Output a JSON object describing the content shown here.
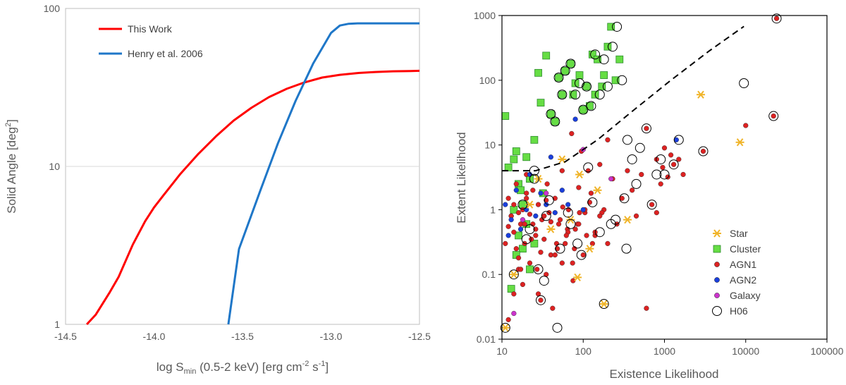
{
  "chart_data": [
    {
      "type": "line",
      "id": "left",
      "xlabel_main": "log S",
      "xlabel_sub": "min",
      "xlabel_rest": " (0.5-2 keV) [erg cm",
      "xlabel_sup1": "-2",
      "xlabel_mid": " s",
      "xlabel_sup2": "-1",
      "xlabel_end": "]",
      "ylabel_main": "Solid Angle [deg",
      "ylabel_sup": "2",
      "ylabel_end": "]",
      "xlim": [
        -14.5,
        -12.5
      ],
      "ylim": [
        1,
        100
      ],
      "yscale": "log",
      "xticks": [
        -14.5,
        -14.0,
        -13.5,
        -13.0,
        -12.5
      ],
      "xtick_labels": [
        "-14.5",
        "-14.0",
        "-13.5",
        "-13.0",
        "-12.5"
      ],
      "yticks": [
        1,
        10,
        100
      ],
      "ytick_labels": [
        "1",
        "10",
        "100"
      ],
      "legend_position": "top-left",
      "series": [
        {
          "name": "This Work",
          "color": "#ff0000",
          "x": [
            -14.38,
            -14.33,
            -14.25,
            -14.2,
            -14.12,
            -14.05,
            -14.0,
            -13.95,
            -13.85,
            -13.75,
            -13.65,
            -13.55,
            -13.45,
            -13.35,
            -13.25,
            -13.15,
            -13.05,
            -12.95,
            -12.85,
            -12.75,
            -12.65,
            -12.55,
            -12.5
          ],
          "y": [
            1.0,
            1.15,
            1.6,
            2.0,
            3.2,
            4.5,
            5.5,
            6.5,
            9.0,
            12.0,
            15.5,
            19.5,
            23.5,
            27.5,
            31.0,
            34.0,
            36.5,
            38.0,
            39.0,
            39.6,
            40.0,
            40.2,
            40.3
          ]
        },
        {
          "name": "Henry et al. 2006",
          "color": "#1f77c8",
          "x": [
            -13.58,
            -13.52,
            -13.4,
            -13.3,
            -13.2,
            -13.1,
            -13.0,
            -12.95,
            -12.9,
            -12.85,
            -12.8,
            -12.7,
            -12.6,
            -12.5
          ],
          "y": [
            1.0,
            3.0,
            7.0,
            14.0,
            26.0,
            45.0,
            70.0,
            78.0,
            80.0,
            80.5,
            80.5,
            80.5,
            80.5,
            80.5
          ]
        }
      ]
    },
    {
      "type": "scatter",
      "id": "right",
      "xlabel": "Existence Likelihood",
      "ylabel": "Extent Likelihood",
      "xscale": "log",
      "yscale": "log",
      "xlim": [
        10,
        100000
      ],
      "ylim": [
        0.01,
        1000
      ],
      "xticks": [
        10,
        100,
        1000,
        10000,
        100000
      ],
      "xtick_labels": [
        "10",
        "100",
        "1000",
        "10000",
        "100000"
      ],
      "yticks": [
        0.01,
        0.1,
        1,
        10,
        100,
        1000
      ],
      "ytick_labels": [
        "0.01",
        "0.1",
        "1",
        "10",
        "100",
        "1000"
      ],
      "legend_position": "bottom-right",
      "dashed_line": {
        "x": [
          10,
          26,
          60,
          150,
          400,
          1200,
          3500,
          9500
        ],
        "y": [
          4.0,
          4.0,
          5.5,
          12,
          33,
          100,
          280,
          680
        ]
      },
      "series": [
        {
          "name": "Star",
          "marker": "asterisk",
          "color": "#f0b429",
          "x": [
            11,
            14,
            22,
            28,
            40,
            55,
            70,
            85,
            90,
            120,
            150,
            180,
            350,
            2800,
            8500
          ],
          "y": [
            0.015,
            0.1,
            1.2,
            3.0,
            0.5,
            6.0,
            0.7,
            0.09,
            3.5,
            0.25,
            2.0,
            0.035,
            0.7,
            60,
            11
          ]
        },
        {
          "name": "Cluster",
          "marker": "square",
          "color": "#66dd44",
          "x": [
            11,
            12,
            14,
            15,
            16,
            18,
            20,
            22,
            25,
            28,
            30,
            32,
            35,
            40,
            45,
            50,
            55,
            60,
            70,
            75,
            80,
            90,
            100,
            110,
            120,
            130,
            140,
            150,
            170,
            180,
            200,
            220,
            250,
            280,
            14,
            16,
            18,
            20,
            22,
            25,
            13,
            15,
            17
          ],
          "y": [
            28,
            4.5,
            6.0,
            8.0,
            2.5,
            1.2,
            6.5,
            3.0,
            12,
            130,
            45,
            1.8,
            240,
            30,
            23,
            110,
            60,
            140,
            180,
            60,
            90,
            120,
            35,
            80,
            40,
            250,
            60,
            210,
            80,
            120,
            330,
            670,
            100,
            210,
            1.0,
            0.4,
            0.25,
            0.6,
            0.12,
            0.3,
            0.06,
            0.2,
            2.0
          ]
        },
        {
          "name": "AGN1",
          "marker": "dot",
          "color": "#dd2222",
          "x": [
            11,
            12,
            13,
            14,
            15,
            16,
            17,
            18,
            19,
            20,
            22,
            24,
            26,
            28,
            30,
            33,
            36,
            40,
            45,
            50,
            55,
            60,
            66,
            72,
            80,
            88,
            95,
            105,
            115,
            125,
            140,
            160,
            180,
            200,
            230,
            260,
            300,
            350,
            400,
            450,
            520,
            600,
            700,
            800,
            900,
            1000,
            1100,
            1300,
            1500,
            1700,
            3000,
            10000,
            22000,
            24000,
            12,
            14,
            16,
            18,
            20,
            23,
            27,
            31,
            35,
            42,
            48,
            56,
            64,
            75,
            85,
            100,
            120,
            140,
            170,
            200,
            12,
            14,
            16,
            19,
            22,
            26,
            30,
            35,
            40,
            47,
            55,
            65,
            78,
            90,
            110,
            13,
            15,
            17,
            20,
            24,
            28,
            33,
            38,
            45,
            52,
            62,
            74,
            88,
            105,
            130,
            160,
            600,
            800,
            950,
            1200
          ],
          "y": [
            0.3,
            1.5,
            0.8,
            0.05,
            2.5,
            0.12,
            0.6,
            1.0,
            0.3,
            3.5,
            0.15,
            2.0,
            0.5,
            1.2,
            0.04,
            0.8,
            2.5,
            0.2,
            1.5,
            0.6,
            4.0,
            0.3,
            1.0,
            15,
            0.5,
            2.2,
            8.0,
            0.9,
            4.0,
            1.8,
            0.4,
            5.0,
            1.0,
            12,
            3.0,
            0.6,
            1.5,
            4.0,
            2.0,
            0.8,
            3.5,
            18,
            1.2,
            6.0,
            2.5,
            9.0,
            3.2,
            5.0,
            6.0,
            3.5,
            8.0,
            20,
            28,
            900,
            0.02,
            0.45,
            0.9,
            0.07,
            1.8,
            0.35,
            0.12,
            0.7,
            1.4,
            0.03,
            0.25,
            1.1,
            0.5,
            0.08,
            0.6,
            0.2,
            1.3,
            0.45,
            0.9,
            0.3,
            0.55,
            1.2,
            0.18,
            0.6,
            0.85,
            0.4,
            0.22,
            0.1,
            0.65,
            0.3,
            0.15,
            0.45,
            0.25,
            0.9,
            0.4,
            0.8,
            0.25,
            0.12,
            1.5,
            0.6,
            0.05,
            0.35,
            0.9,
            0.2,
            0.7,
            0.4,
            0.15,
            0.6,
            1.0,
            0.3,
            0.8,
            0.03,
            0.9,
            4.5,
            7.0
          ]
        },
        {
          "name": "AGN2",
          "marker": "dot",
          "color": "#1a3fdd",
          "x": [
            11,
            12,
            13,
            15,
            17,
            20,
            22,
            26,
            30,
            35,
            40,
            45,
            55,
            65,
            80,
            100,
            1400
          ],
          "y": [
            1.2,
            0.4,
            0.7,
            2.0,
            0.5,
            1.0,
            3.5,
            0.8,
            1.8,
            1.2,
            6.5,
            0.9,
            2.0,
            1.2,
            25,
            1.0,
            12
          ]
        },
        {
          "name": "Galaxy",
          "marker": "dot",
          "color": "#cc33cc",
          "x": [
            14,
            18,
            35,
            100,
            220
          ],
          "y": [
            0.025,
            0.7,
            1.8,
            8.5,
            3.0
          ]
        },
        {
          "name": "H06",
          "marker": "circle",
          "color": "#000000",
          "x": [
            11,
            14,
            18,
            22,
            25,
            30,
            35,
            40,
            45,
            50,
            55,
            60,
            70,
            80,
            90,
            100,
            110,
            125,
            140,
            160,
            180,
            200,
            230,
            260,
            300,
            350,
            400,
            450,
            500,
            600,
            700,
            800,
            900,
            1000,
            1300,
            1500,
            3000,
            9500,
            22000,
            24000,
            20,
            28,
            38,
            52,
            70,
            95,
            130,
            180,
            250,
            340,
            25,
            33,
            48,
            65,
            85,
            115,
            160,
            220,
            320
          ],
          "y": [
            0.015,
            0.1,
            1.2,
            0.5,
            3.0,
            0.04,
            0.8,
            30,
            23,
            110,
            60,
            140,
            180,
            60,
            90,
            35,
            80,
            40,
            250,
            60,
            210,
            80,
            330,
            670,
            100,
            12,
            6.0,
            2.5,
            9.0,
            18,
            1.2,
            3.5,
            6.0,
            3.5,
            5.0,
            12,
            8.0,
            90,
            28,
            900,
            0.35,
            0.12,
            1.4,
            0.25,
            0.6,
            0.2,
            1.3,
            0.035,
            0.7,
            0.25,
            4.0,
            0.08,
            0.015,
            0.9,
            0.3,
            4.5,
            0.45,
            0.6,
            1.5
          ]
        }
      ]
    }
  ]
}
